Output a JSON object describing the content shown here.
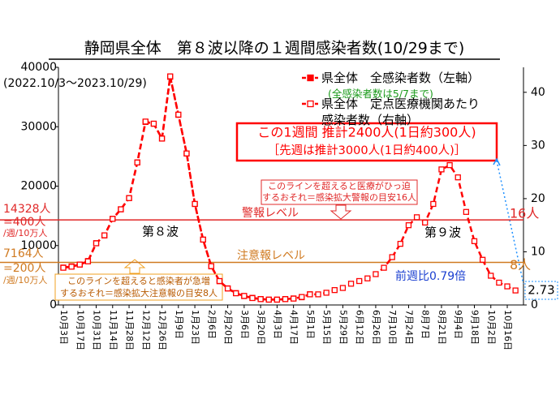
{
  "chart_data": {
    "type": "line",
    "title": "静岡県全体　第８波以降の１週間感染者数(10/29まで)",
    "subtitle": "(2022.10/3～2023.10/29)",
    "categories": [
      "10月3日",
      null,
      "10月17日",
      null,
      "10月31日",
      null,
      "11月14日",
      null,
      "11月28日",
      null,
      "12月12日",
      null,
      "12月26日",
      null,
      "1月9日",
      null,
      "1月23日",
      null,
      "2月6日",
      null,
      "2月20日",
      null,
      "3月6日",
      null,
      "3月20日",
      null,
      "4月3日",
      null,
      "4月17日",
      null,
      "5月1日",
      null,
      "5月15日",
      null,
      "5月29日",
      null,
      "6月12日",
      null,
      "6月26日",
      null,
      "7月10日",
      null,
      "7月24日",
      null,
      "8月7日",
      null,
      "8月21日",
      null,
      "9月4日",
      null,
      "9月18日",
      null,
      "10月2日",
      null,
      "10月16日",
      null
    ],
    "series": [
      {
        "name": "県全体　全感染者数（左軸）",
        "note": "(全感染者数は5/7まで)",
        "color": "#ff0000",
        "marker": "filled",
        "values": [
          6300,
          6500,
          6800,
          7400,
          10400,
          11700,
          14500,
          16100,
          18000,
          24000,
          30800,
          30500,
          28000,
          38400,
          32000,
          25500,
          17000,
          11000,
          6500,
          4000,
          2800,
          2000,
          1500,
          1200,
          1000,
          900,
          900,
          1000,
          1100,
          1300,
          1800,
          null,
          null,
          null,
          null,
          null,
          null,
          null,
          null,
          null,
          null,
          null,
          null,
          null,
          null,
          null,
          null,
          null,
          null,
          null,
          null,
          null,
          null,
          null,
          null,
          null
        ]
      },
      {
        "name": "県全体　定点医療機関あたり感染者数（右軸）",
        "color": "#ff0000",
        "marker": "open",
        "axis": "y2",
        "values": [
          7.0,
          7.2,
          7.6,
          8.2,
          11.6,
          13.1,
          16.2,
          18.0,
          20.1,
          26.8,
          34.5,
          34.1,
          31.3,
          43.0,
          35.8,
          28.5,
          19.0,
          12.3,
          7.3,
          4.5,
          3.1,
          2.2,
          1.7,
          1.3,
          1.1,
          1.0,
          1.0,
          1.1,
          1.2,
          1.5,
          2.0,
          2.0,
          2.3,
          2.8,
          3.2,
          4.0,
          4.5,
          5.0,
          5.8,
          7.0,
          9.0,
          11.5,
          15.0,
          16.5,
          15.5,
          19.0,
          25.5,
          26.3,
          24.0,
          17.5,
          12.0,
          8.5,
          5.5,
          4.2,
          3.5,
          2.73
        ]
      }
    ],
    "ylim": [
      0,
      40000
    ],
    "yticks": [
      0,
      10000,
      20000,
      30000,
      40000
    ],
    "y2lim": [
      0,
      44.7
    ],
    "y2ticks": [
      0,
      10,
      20,
      30,
      40
    ],
    "reference_lines": [
      {
        "axis": "y2",
        "value": 16,
        "color": "#e02828",
        "label": "警報レベル",
        "value_label": "16人",
        "left_label": [
          "14328人",
          "=400人",
          "/週/10万人"
        ],
        "note": [
          "このラインを超えると医療がひっ迫",
          "するおそれ＝感染拡大警報の目安16人"
        ]
      },
      {
        "axis": "y2",
        "value": 8,
        "color": "#d07a20",
        "label": "注意報レベル",
        "value_label": "8人",
        "left_label": [
          "7164人",
          "=200人",
          "/週/10万人"
        ],
        "note": [
          "このラインを超えると感染者が急増",
          "するおそれ＝感染拡大注意報の目安8人"
        ]
      }
    ],
    "callout": [
      "この1週間 推計2400人(1日約300人)",
      "［先週は推計3000人(1日約400人)］"
    ],
    "annotations": [
      "第８波",
      "第９波",
      "前週比0.79倍"
    ]
  }
}
